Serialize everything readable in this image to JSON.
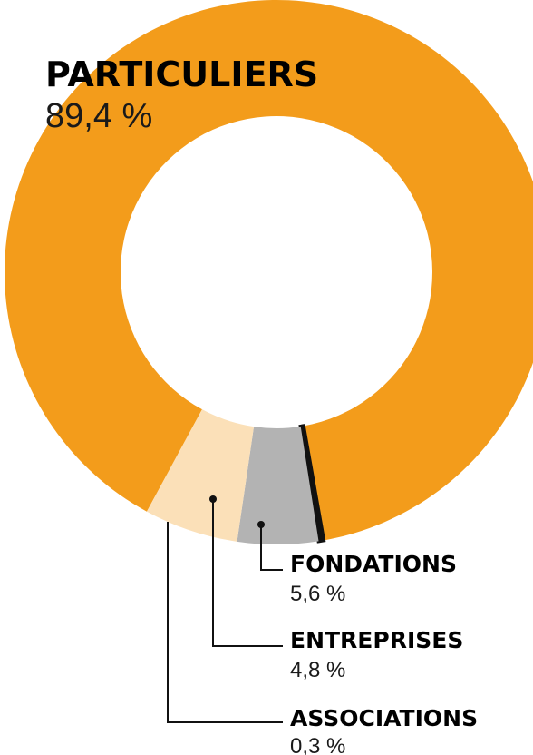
{
  "chart_data": {
    "type": "pie",
    "style": "donut",
    "title": "",
    "slices": [
      {
        "label": "PARTICULIERS",
        "value": 89.4,
        "value_text": "89,4 %",
        "color": "#f39c1b"
      },
      {
        "label": "ASSOCIATIONS",
        "value": 0.3,
        "value_text": "0,3 %",
        "color": "#111111"
      },
      {
        "label": "ENTREPRISES",
        "value": 4.8,
        "value_text": "4,8 %",
        "color": "#b3b3b3"
      },
      {
        "label": "FONDATIONS",
        "value": 5.6,
        "value_text": "5,6 %",
        "color": "#fbe0b8"
      }
    ]
  }
}
